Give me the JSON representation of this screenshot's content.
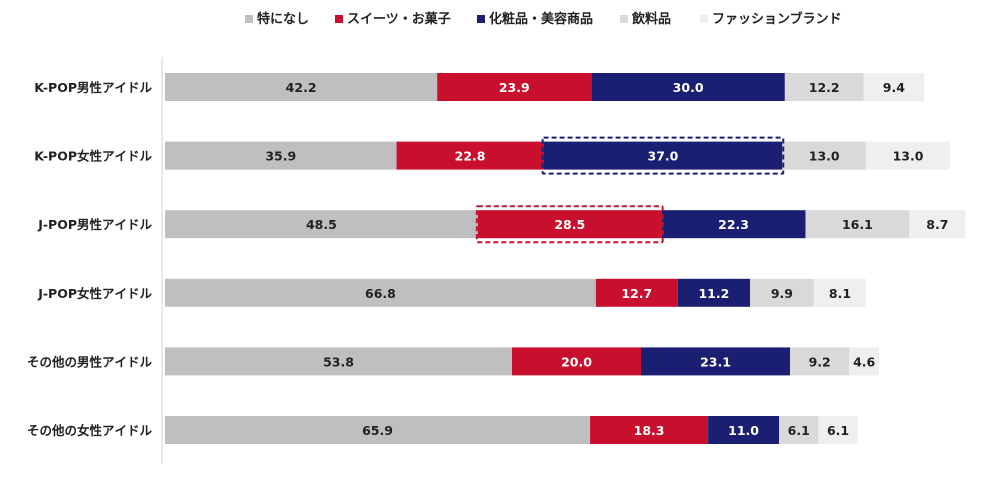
{
  "chart_data": {
    "type": "stacked-bar-horizontal",
    "title": "",
    "categories": [
      "K-POP男性アイドル",
      "K-POP女性アイドル",
      "J-POP男性アイドル",
      "J-POP女性アイドル",
      "その他の男性アイドル",
      "その他の女性アイドル"
    ],
    "series": [
      {
        "name": "特になし",
        "color": "#bfbfbf",
        "label_color": "#222222",
        "values": [
          42.2,
          35.9,
          48.5,
          66.8,
          53.8,
          65.9
        ]
      },
      {
        "name": "スイーツ・お菓子",
        "color": "#c8102e",
        "label_color": "#ffffff",
        "values": [
          23.9,
          22.8,
          28.5,
          12.7,
          20.0,
          18.3
        ]
      },
      {
        "name": "化粧品・美容商品",
        "color": "#1a1f71",
        "label_color": "#ffffff",
        "values": [
          30.0,
          37.0,
          22.3,
          11.2,
          23.1,
          11.0
        ]
      },
      {
        "name": "飲料品",
        "color": "#d9d9d9",
        "label_color": "#222222",
        "values": [
          12.2,
          13.0,
          16.1,
          9.9,
          9.2,
          6.1
        ]
      },
      {
        "name": "ファッションブランド",
        "color": "#efefef",
        "label_color": "#222222",
        "values": [
          9.4,
          13.0,
          8.7,
          8.1,
          4.6,
          6.1
        ]
      }
    ],
    "highlights": [
      {
        "category_index": 1,
        "series_index": 2,
        "color": "#1a1f71"
      },
      {
        "category_index": 2,
        "series_index": 1,
        "color": "#c8102e"
      }
    ],
    "legend_position": "top",
    "xlabel": "",
    "ylabel": "",
    "grid": false
  }
}
